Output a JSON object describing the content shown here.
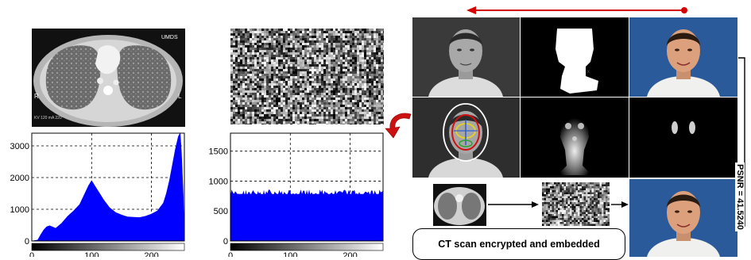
{
  "left_panel": {
    "ct_labels": {
      "top_right": "UMDS",
      "side_r": "R",
      "side_l": "L",
      "info": "KV 120\nmA 220"
    }
  },
  "chart_data": [
    {
      "type": "area",
      "x": [
        0,
        10,
        15,
        20,
        25,
        30,
        40,
        50,
        60,
        70,
        80,
        90,
        95,
        100,
        105,
        110,
        120,
        130,
        140,
        150,
        160,
        170,
        180,
        190,
        200,
        210,
        220,
        225,
        230,
        235,
        240,
        245,
        248,
        250,
        253,
        255
      ],
      "y": [
        0,
        30,
        200,
        350,
        450,
        480,
        400,
        560,
        780,
        950,
        1150,
        1550,
        1750,
        1900,
        1750,
        1600,
        1300,
        1050,
        900,
        820,
        760,
        750,
        740,
        780,
        850,
        950,
        1200,
        1500,
        1900,
        2400,
        2900,
        3300,
        3400,
        2800,
        1500,
        0
      ],
      "xticks": [
        0,
        100,
        200
      ],
      "yticks": [
        0,
        1000,
        2000,
        3000
      ],
      "xlim": [
        0,
        255
      ],
      "ylim": [
        0,
        3400
      ],
      "grid": true,
      "colors": {
        "fill": "#0000ff"
      }
    },
    {
      "type": "area",
      "x": [
        0,
        255
      ],
      "y": [
        780,
        780
      ],
      "xticks": [
        0,
        100,
        200
      ],
      "yticks": [
        0,
        500,
        1000,
        1500
      ],
      "xlim": [
        0,
        255
      ],
      "ylim": [
        0,
        1800
      ],
      "grid": true,
      "colors": {
        "fill": "#0000ff"
      }
    }
  ],
  "right_panel": {
    "caption": "CT scan  encrypted  and embedded",
    "psnr": "PSNR = 41.5240",
    "colors": {
      "red_arrow": "#d40000"
    }
  }
}
